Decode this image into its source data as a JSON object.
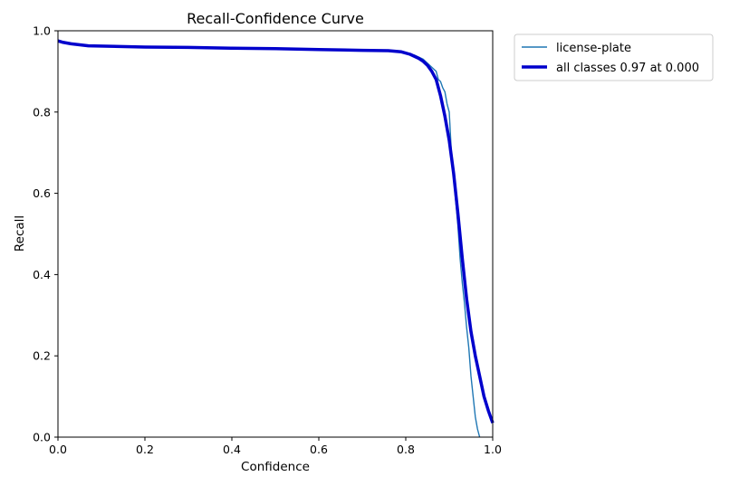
{
  "chart_data": {
    "type": "line",
    "title": "Recall-Confidence Curve",
    "xlabel": "Confidence",
    "ylabel": "Recall",
    "xlim": [
      0.0,
      1.0
    ],
    "ylim": [
      0.0,
      1.0
    ],
    "xticks": [
      "0.0",
      "0.2",
      "0.4",
      "0.6",
      "0.8",
      "1.0"
    ],
    "yticks": [
      "0.0",
      "0.2",
      "0.4",
      "0.6",
      "0.8",
      "1.0"
    ],
    "grid": false,
    "legend_position": "outside-top-right",
    "series": [
      {
        "name": "license-plate",
        "color": "#1f77b4",
        "width": "thin",
        "x": [
          0.0,
          0.01,
          0.03,
          0.07,
          0.12,
          0.2,
          0.3,
          0.4,
          0.5,
          0.6,
          0.7,
          0.76,
          0.8,
          0.82,
          0.84,
          0.85,
          0.86,
          0.87,
          0.875,
          0.88,
          0.885,
          0.89,
          0.895,
          0.9,
          0.905,
          0.91,
          0.915,
          0.92,
          0.925,
          0.93,
          0.935,
          0.94,
          0.945,
          0.95,
          0.955,
          0.96,
          0.965,
          0.97
        ],
        "y": [
          0.975,
          0.972,
          0.968,
          0.963,
          0.962,
          0.96,
          0.959,
          0.957,
          0.956,
          0.954,
          0.952,
          0.951,
          0.945,
          0.94,
          0.93,
          0.92,
          0.91,
          0.9,
          0.88,
          0.875,
          0.86,
          0.85,
          0.82,
          0.8,
          0.7,
          0.64,
          0.58,
          0.52,
          0.44,
          0.38,
          0.33,
          0.27,
          0.22,
          0.15,
          0.1,
          0.05,
          0.02,
          0.0
        ]
      },
      {
        "name": "all classes 0.97 at 0.000",
        "color": "#0000cc",
        "width": "thick",
        "x": [
          0.0,
          0.01,
          0.03,
          0.07,
          0.12,
          0.2,
          0.3,
          0.4,
          0.5,
          0.6,
          0.7,
          0.76,
          0.79,
          0.81,
          0.83,
          0.84,
          0.85,
          0.86,
          0.87,
          0.88,
          0.89,
          0.9,
          0.91,
          0.92,
          0.93,
          0.94,
          0.95,
          0.96,
          0.97,
          0.98,
          0.99,
          1.0
        ],
        "y": [
          0.975,
          0.972,
          0.968,
          0.963,
          0.962,
          0.96,
          0.959,
          0.957,
          0.956,
          0.954,
          0.952,
          0.951,
          0.948,
          0.942,
          0.932,
          0.925,
          0.915,
          0.9,
          0.88,
          0.84,
          0.79,
          0.73,
          0.65,
          0.55,
          0.44,
          0.34,
          0.26,
          0.2,
          0.15,
          0.1,
          0.065,
          0.035
        ]
      }
    ]
  }
}
